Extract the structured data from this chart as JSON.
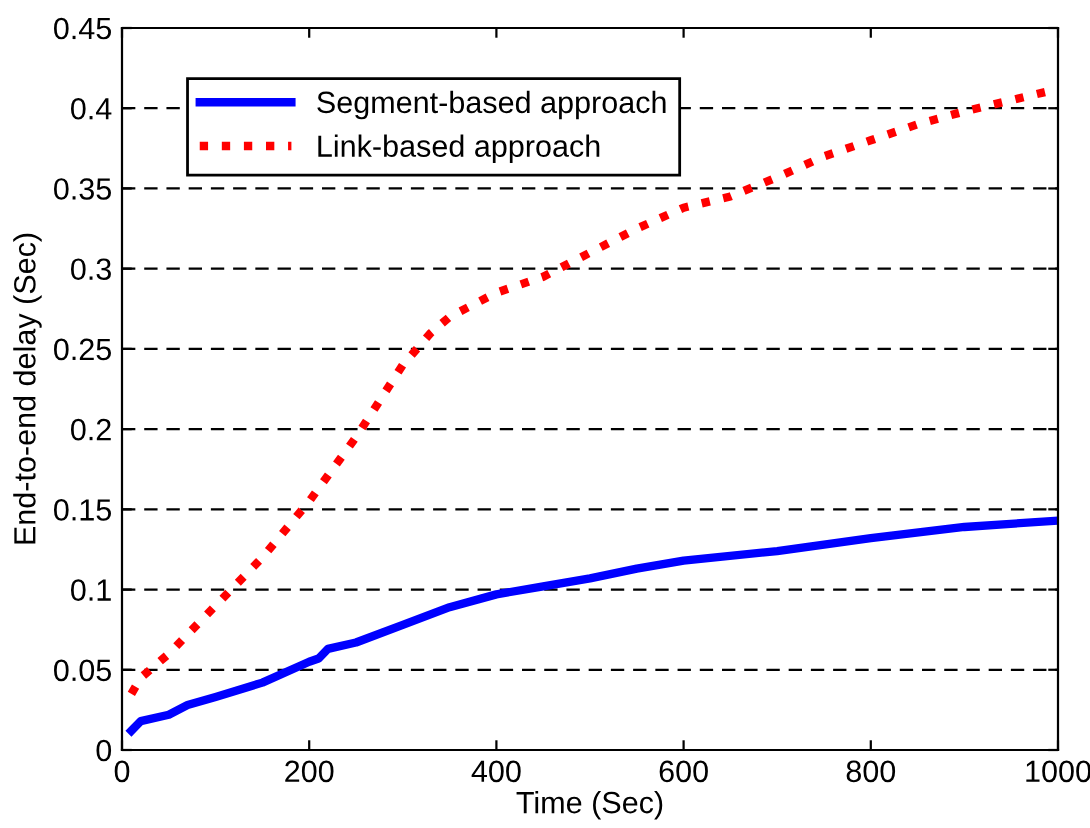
{
  "chart_data": {
    "type": "line",
    "xlabel": "Time (Sec)",
    "ylabel": "End-to-end delay (Sec)",
    "xlim": [
      0,
      1000
    ],
    "ylim": [
      0,
      0.45
    ],
    "xticks": [
      0,
      200,
      400,
      600,
      800,
      1000
    ],
    "yticks": [
      0,
      0.05,
      0.1,
      0.15,
      0.2,
      0.25,
      0.3,
      0.35,
      0.4,
      0.45
    ],
    "grid": "y",
    "legend": "top left",
    "series": [
      {
        "name": "Segment-based approach",
        "color": "#0000ff",
        "line_style": "solid",
        "x": [
          10,
          20,
          50,
          70,
          100,
          150,
          200,
          210,
          220,
          250,
          300,
          350,
          400,
          450,
          500,
          550,
          600,
          700,
          750,
          800,
          900,
          1000
        ],
        "values": [
          0.012,
          0.018,
          0.022,
          0.028,
          0.033,
          0.042,
          0.055,
          0.057,
          0.063,
          0.067,
          0.078,
          0.089,
          0.097,
          0.102,
          0.107,
          0.113,
          0.118,
          0.124,
          0.128,
          0.132,
          0.139,
          0.143
        ]
      },
      {
        "name": "Link-based approach",
        "color": "#ff0000",
        "line_style": "dotted",
        "x": [
          10,
          20,
          50,
          100,
          150,
          200,
          250,
          300,
          330,
          350,
          400,
          450,
          500,
          550,
          600,
          650,
          700,
          750,
          800,
          850,
          900,
          950,
          1000
        ],
        "values": [
          0.035,
          0.045,
          0.06,
          0.09,
          0.12,
          0.155,
          0.195,
          0.24,
          0.26,
          0.27,
          0.285,
          0.295,
          0.31,
          0.325,
          0.338,
          0.345,
          0.357,
          0.37,
          0.38,
          0.39,
          0.398,
          0.405,
          0.412
        ]
      }
    ]
  }
}
